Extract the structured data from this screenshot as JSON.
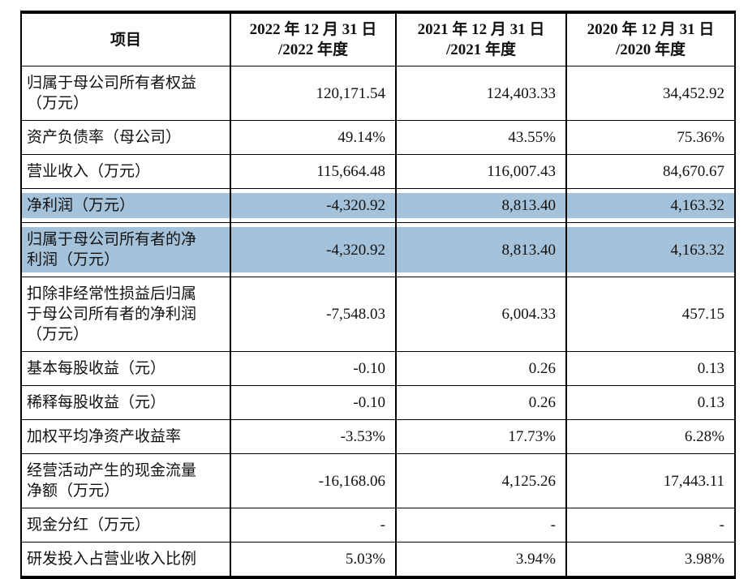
{
  "table": {
    "highlight_color": "#a4c3db",
    "header": {
      "item_label": "项目",
      "periods": [
        "2022 年 12 月 31 日\n/2022 年度",
        "2021 年 12 月 31 日\n/2021 年度",
        "2020 年 12 月 31 日\n/2020 年度"
      ]
    },
    "rows": [
      {
        "label": "归属于母公司所有者权益\n（万元）",
        "values": [
          "120,171.54",
          "124,403.33",
          "34,452.92"
        ],
        "highlight": false
      },
      {
        "label": "资产负债率（母公司）",
        "values": [
          "49.14%",
          "43.55%",
          "75.36%"
        ],
        "highlight": false
      },
      {
        "label": "营业收入（万元）",
        "values": [
          "115,664.48",
          "116,007.43",
          "84,670.67"
        ],
        "highlight": false
      },
      {
        "label": "净利润（万元）",
        "values": [
          "-4,320.92",
          "8,813.40",
          "4,163.32"
        ],
        "highlight": true
      },
      {
        "label": "归属于母公司所有者的净\n利润（万元）",
        "values": [
          "-4,320.92",
          "8,813.40",
          "4,163.32"
        ],
        "highlight": true
      },
      {
        "label": "扣除非经常性损益后归属\n于母公司所有者的净利润\n（万元）",
        "values": [
          "-7,548.03",
          "6,004.33",
          "457.15"
        ],
        "highlight": false
      },
      {
        "label": "基本每股收益（元）",
        "values": [
          "-0.10",
          "0.26",
          "0.13"
        ],
        "highlight": false
      },
      {
        "label": "稀释每股收益（元）",
        "values": [
          "-0.10",
          "0.26",
          "0.13"
        ],
        "highlight": false
      },
      {
        "label": "加权平均净资产收益率",
        "values": [
          "-3.53%",
          "17.73%",
          "6.28%"
        ],
        "highlight": false
      },
      {
        "label": "经营活动产生的现金流量\n净额（万元）",
        "values": [
          "-16,168.06",
          "4,125.26",
          "17,443.11"
        ],
        "highlight": false
      },
      {
        "label": "现金分红（万元）",
        "values": [
          "-",
          "-",
          "-"
        ],
        "highlight": false
      },
      {
        "label": "研发投入占营业收入比例",
        "values": [
          "5.03%",
          "3.94%",
          "3.98%"
        ],
        "highlight": false
      }
    ]
  }
}
